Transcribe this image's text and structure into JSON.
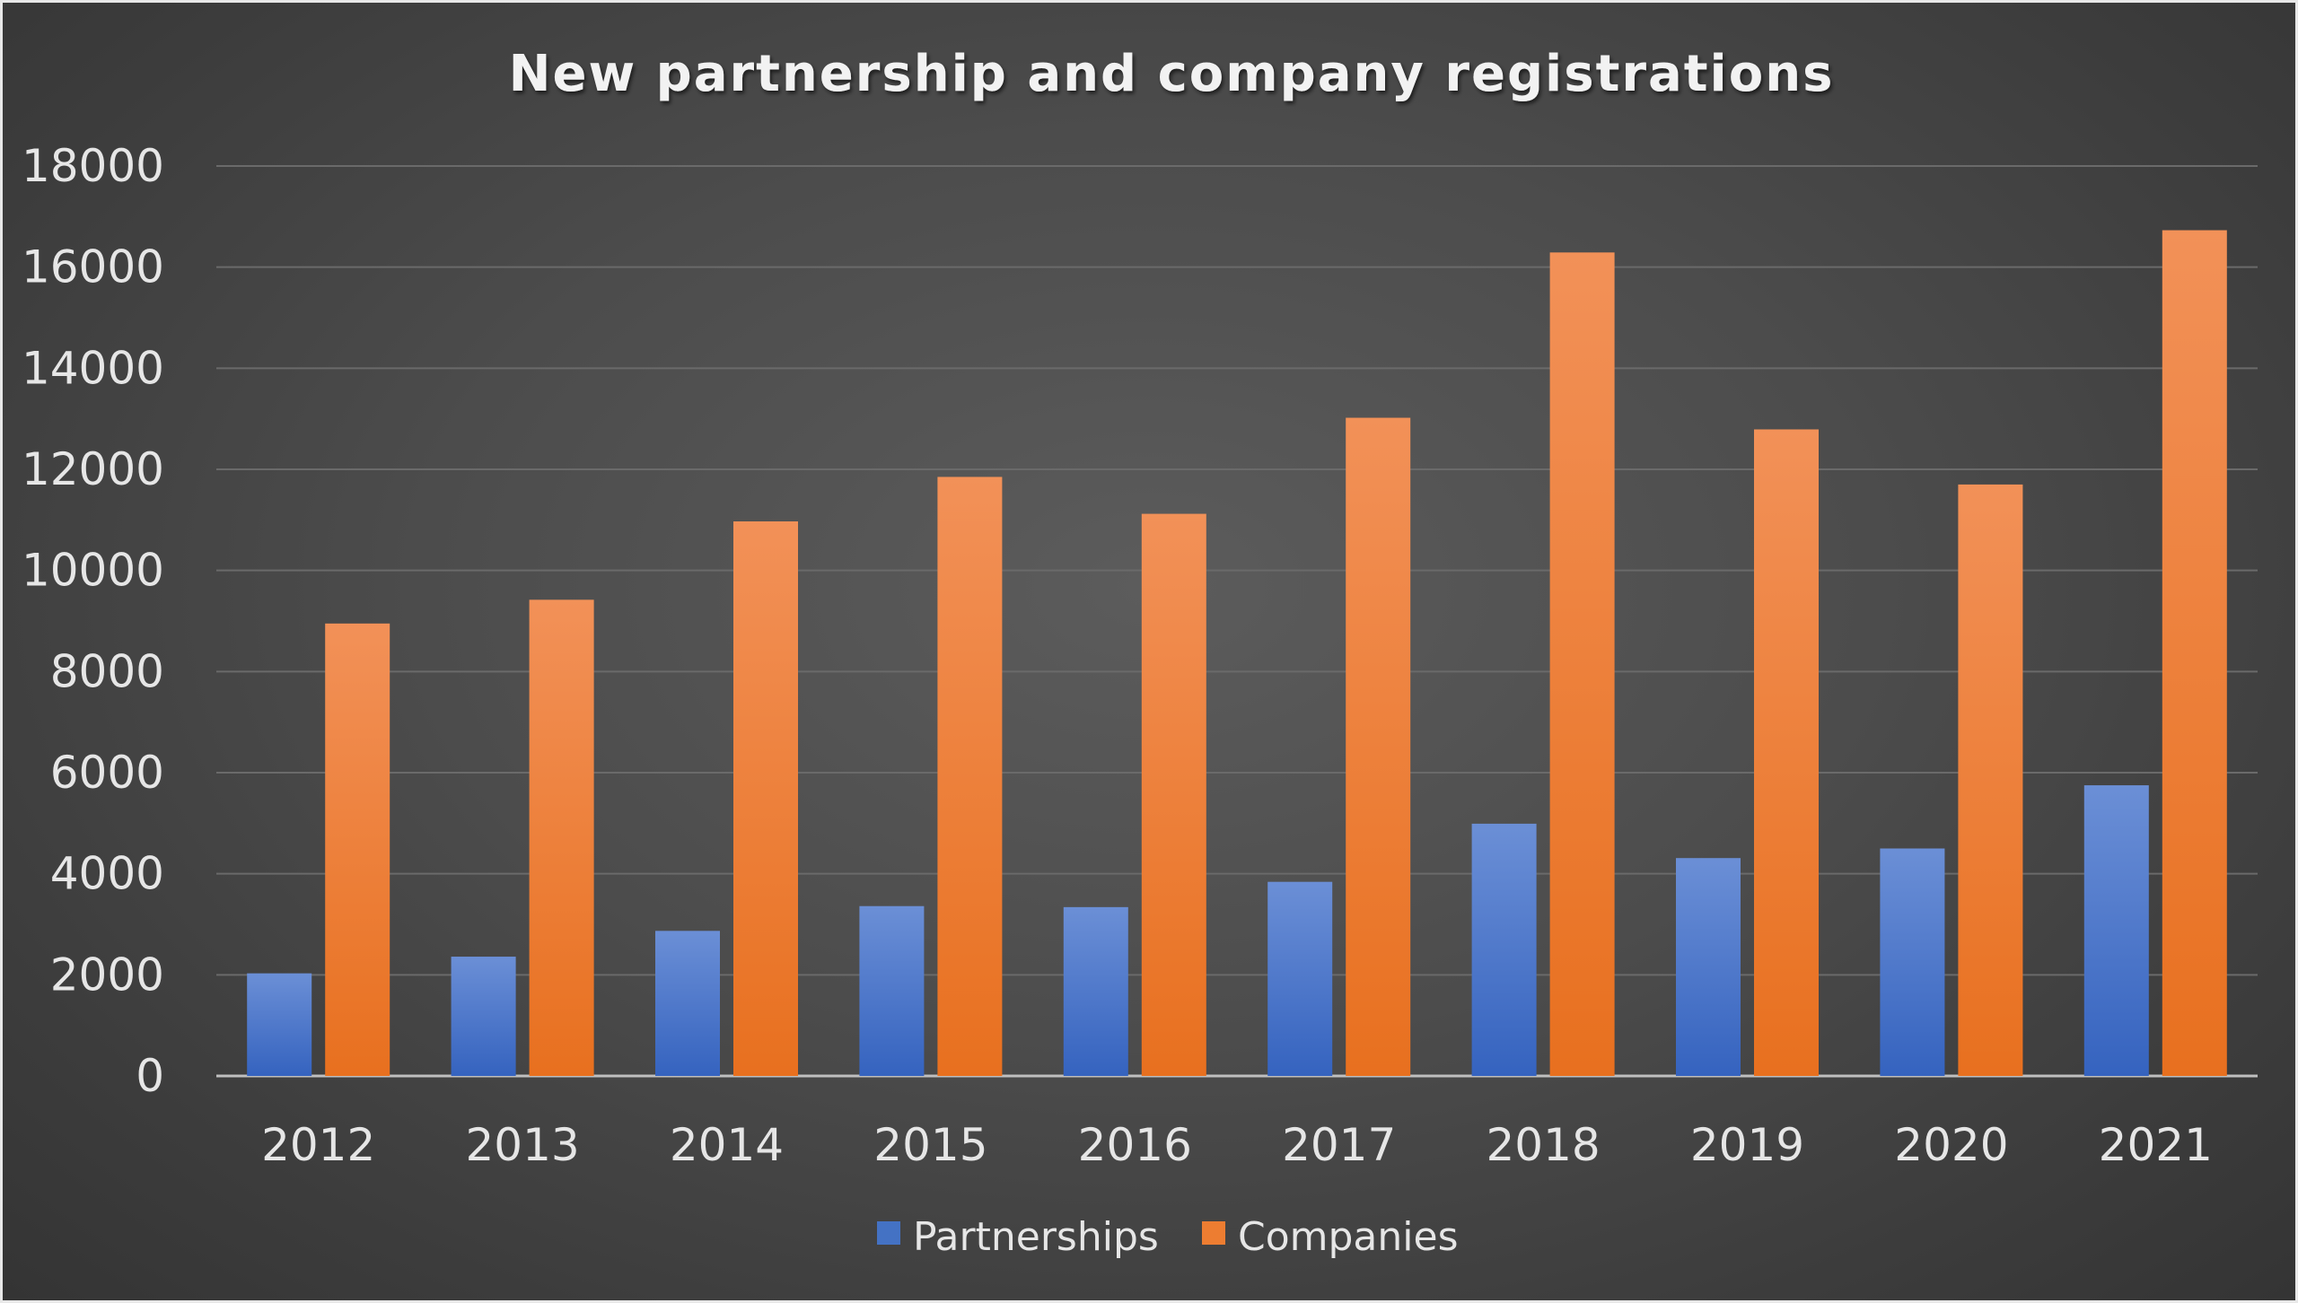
{
  "chart_data": {
    "type": "bar",
    "title": "New partnership and company registrations",
    "xlabel": "",
    "ylabel": "",
    "categories": [
      "2012",
      "2013",
      "2014",
      "2015",
      "2016",
      "2017",
      "2018",
      "2019",
      "2020",
      "2021"
    ],
    "series": [
      {
        "name": "Partnerships",
        "color": "#4472c4",
        "values": [
          2030,
          2360,
          2870,
          3360,
          3340,
          3840,
          4990,
          4310,
          4500,
          5750
        ]
      },
      {
        "name": "Companies",
        "color": "#ed7d31",
        "values": [
          8950,
          9420,
          10970,
          11850,
          11120,
          13020,
          16290,
          12790,
          11700,
          16730
        ]
      }
    ],
    "ylim": [
      0,
      18000
    ],
    "y_ticks": [
      "0",
      "2000",
      "4000",
      "6000",
      "8000",
      "10000",
      "12000",
      "14000",
      "16000",
      "18000"
    ],
    "grid": true,
    "legend_position": "bottom"
  }
}
